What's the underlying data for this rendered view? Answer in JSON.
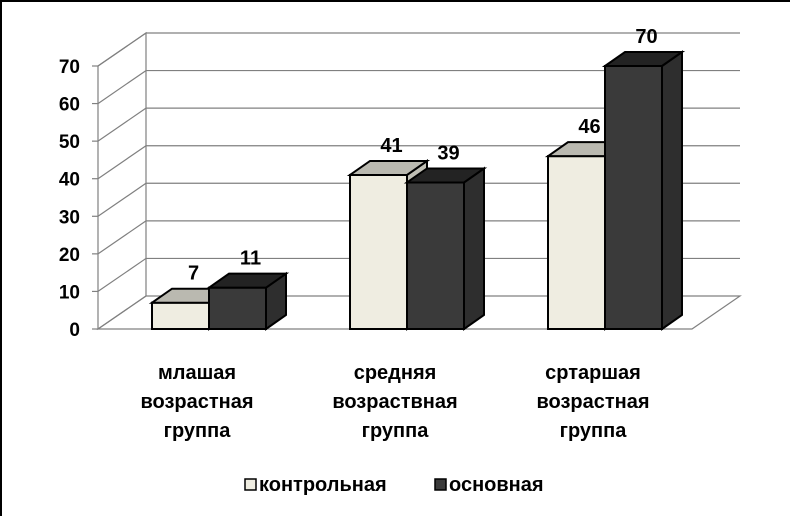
{
  "chart_data": {
    "type": "bar",
    "title": "",
    "xlabel": "",
    "ylabel": "",
    "ylim": [
      0,
      70
    ],
    "yticks": [
      0,
      10,
      20,
      30,
      40,
      50,
      60,
      70
    ],
    "grid": true,
    "three_d": true,
    "legend_position": "bottom",
    "categories": [
      [
        "млашая",
        "возрастная",
        "группа"
      ],
      [
        "средняя",
        "возраствная",
        "группа"
      ],
      [
        "сртаршая",
        "возрастная",
        "группа"
      ]
    ],
    "series": [
      {
        "name": "контрольная",
        "values": [
          7,
          41,
          46
        ],
        "color": "#efede1"
      },
      {
        "name": "основная",
        "values": [
          11,
          39,
          70
        ],
        "color": "#3a3a3a"
      }
    ]
  }
}
